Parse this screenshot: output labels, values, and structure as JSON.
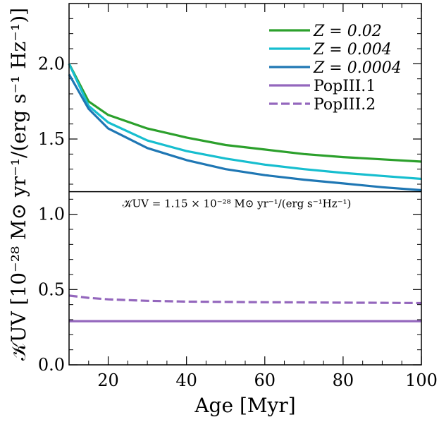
{
  "chart_data": {
    "type": "line",
    "xlabel": "Age [Myr]",
    "ylabel": "𝒦UV [10⁻²⁸ M⊙ yr⁻¹/(erg s⁻¹ Hz⁻¹)]",
    "xlim": [
      10,
      100
    ],
    "ylim": [
      0,
      2.4
    ],
    "x_ticks": [
      "20",
      "40",
      "60",
      "80",
      "100"
    ],
    "y_ticks": [
      "0.0",
      "0.5",
      "1.0",
      "1.5",
      "2.0"
    ],
    "x": [
      10,
      15,
      20,
      30,
      40,
      50,
      60,
      70,
      80,
      90,
      100
    ],
    "series": [
      {
        "name": "Z = 0.02",
        "color": "#2ca02c",
        "dash": "solid",
        "values": [
          2.0,
          1.75,
          1.66,
          1.57,
          1.51,
          1.46,
          1.43,
          1.4,
          1.38,
          1.365,
          1.35
        ]
      },
      {
        "name": "Z = 0.004",
        "color": "#17becf",
        "dash": "solid",
        "values": [
          2.0,
          1.72,
          1.61,
          1.49,
          1.42,
          1.37,
          1.33,
          1.3,
          1.275,
          1.255,
          1.235
        ]
      },
      {
        "name": "Z = 0.0004",
        "color": "#1f77b4",
        "dash": "solid",
        "values": [
          1.93,
          1.7,
          1.57,
          1.44,
          1.36,
          1.3,
          1.26,
          1.23,
          1.205,
          1.18,
          1.16
        ]
      },
      {
        "name": "PopIII.1",
        "color": "#9467bd",
        "dash": "solid",
        "values": [
          0.29,
          0.29,
          0.29,
          0.29,
          0.29,
          0.29,
          0.29,
          0.29,
          0.29,
          0.29,
          0.29
        ]
      },
      {
        "name": "PopIII.2",
        "color": "#9467bd",
        "dash": "dashed",
        "values": [
          0.46,
          0.445,
          0.435,
          0.425,
          0.42,
          0.418,
          0.416,
          0.415,
          0.413,
          0.412,
          0.41
        ]
      }
    ],
    "reference_line": {
      "value": 1.15,
      "label": "𝒦UV = 1.15 × 10⁻²⁸ M⊙ yr⁻¹/(erg s⁻¹Hz⁻¹)"
    },
    "legend_position": "top-right",
    "grid": false
  }
}
